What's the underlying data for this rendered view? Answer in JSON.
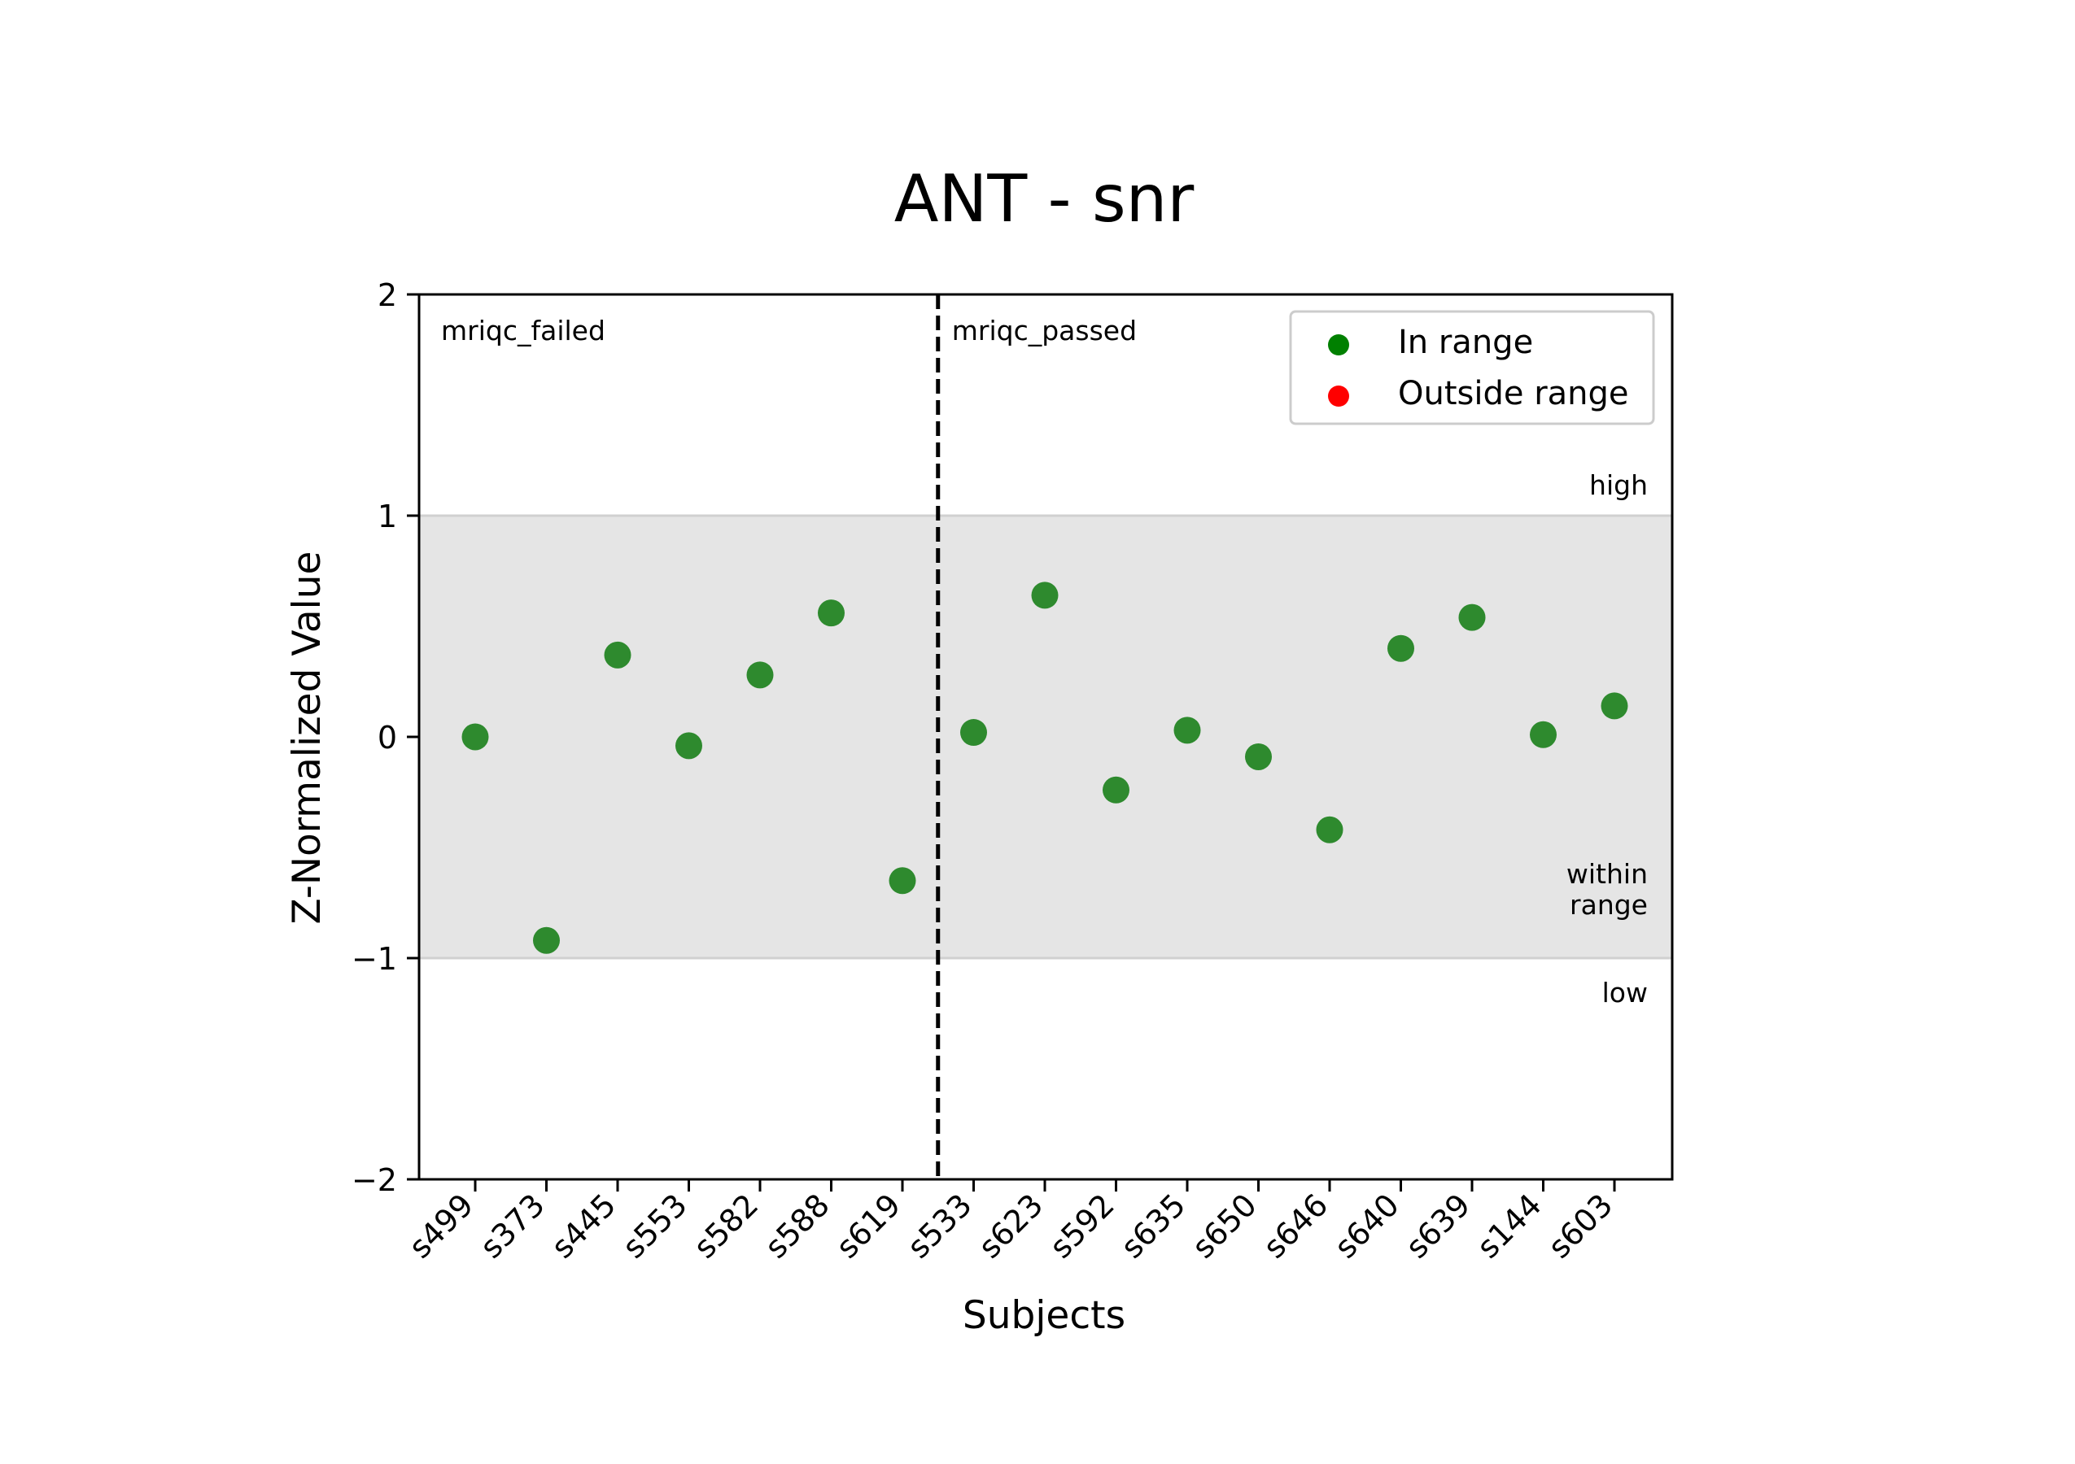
{
  "chart_data": {
    "type": "scatter",
    "title": "ANT - snr",
    "xlabel": "Subjects",
    "ylabel": "Z-Normalized Value",
    "ylim": [
      -2,
      2
    ],
    "yticks": [
      "−2",
      "−1",
      "0",
      "1",
      "2"
    ],
    "ytick_values": [
      -2,
      -1,
      0,
      1,
      2
    ],
    "categories": [
      "s499",
      "s373",
      "s445",
      "s553",
      "s582",
      "s588",
      "s619",
      "s533",
      "s623",
      "s592",
      "s635",
      "s650",
      "s646",
      "s640",
      "s639",
      "s144",
      "s603"
    ],
    "values": [
      0.0,
      -0.92,
      0.37,
      -0.04,
      0.28,
      0.56,
      -0.65,
      0.02,
      0.64,
      -0.24,
      0.03,
      -0.09,
      -0.42,
      0.4,
      0.54,
      0.01,
      0.14
    ],
    "point_status": [
      "in",
      "in",
      "in",
      "in",
      "in",
      "in",
      "in",
      "in",
      "in",
      "in",
      "in",
      "in",
      "in",
      "in",
      "in",
      "in",
      "in"
    ],
    "range_band": {
      "low": -1,
      "high": 1,
      "color": "#e5e5e5",
      "edge_color": "#d0d0d0"
    },
    "band_labels": {
      "high": "high",
      "within": [
        "within",
        "range"
      ],
      "low": "low"
    },
    "groups": [
      {
        "name": "mriqc_failed",
        "start_index": 0,
        "end_index": 6
      },
      {
        "name": "mriqc_passed",
        "start_index": 7,
        "end_index": 16
      }
    ],
    "divider_after_index": 6,
    "legend": {
      "position": "top-right",
      "entries": [
        {
          "label": "In range",
          "color": "#008000"
        },
        {
          "label": "Outside range",
          "color": "#ff0000"
        }
      ]
    },
    "grid": false,
    "colors": {
      "in_range": "#1a801a",
      "outside_range": "#ff0000"
    }
  }
}
